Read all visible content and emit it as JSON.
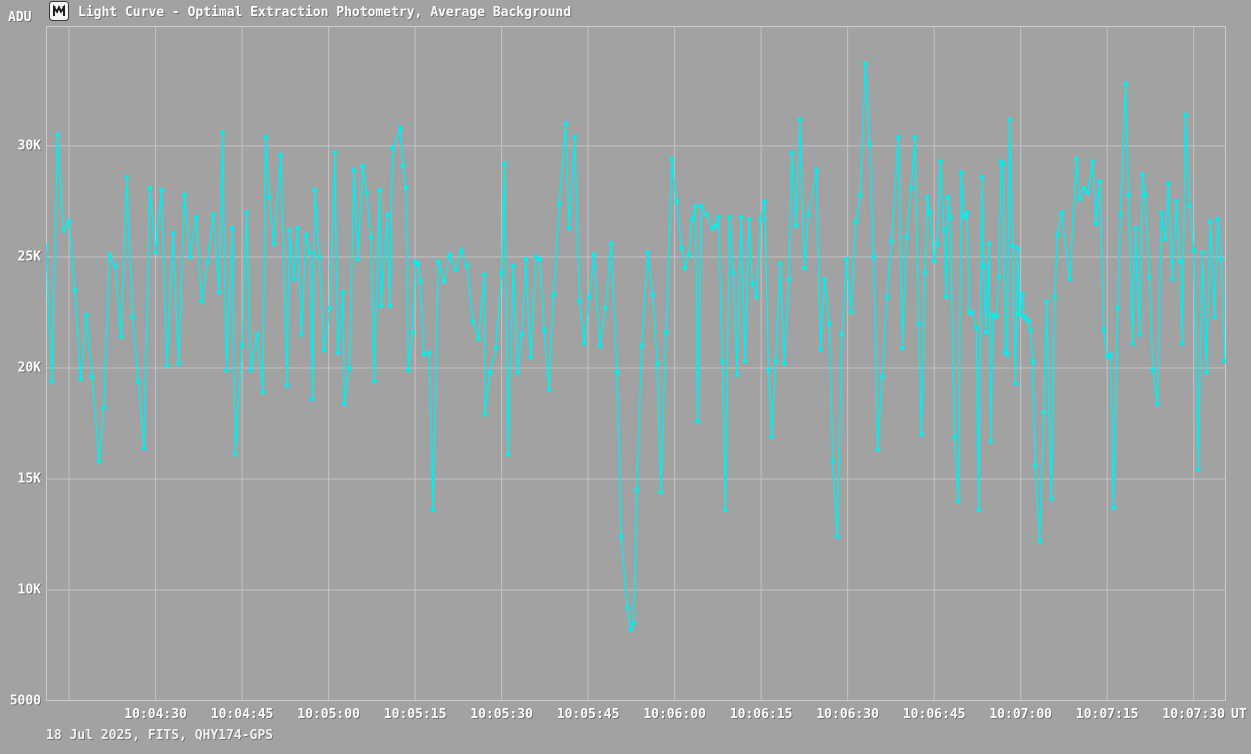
{
  "header": {
    "icon": "app-icon",
    "title": "Light Curve - Optimal Extraction Photometry, Average Background"
  },
  "footer": {
    "text": "18 Jul 2025, FITS, QHY174-GPS"
  },
  "colors": {
    "background": "#a2a2a2",
    "grid": "#c3c3c3",
    "border": "#cbcbcb",
    "series": "#00efef",
    "text": "#fafafa"
  },
  "chart_data": {
    "type": "line",
    "title": "Light Curve - Optimal Extraction Photometry, Average Background",
    "xlabel": "UT",
    "ylabel": "ADU",
    "x_start_time": "10:04:11",
    "xlim_seconds": [
      0,
      204.6
    ],
    "ylim": [
      5000,
      35400
    ],
    "grid": true,
    "marker": "square",
    "y_ticks": [
      {
        "value": 30000,
        "label": "30K",
        "gridline": true
      },
      {
        "value": 25000,
        "label": "25K",
        "gridline": true
      },
      {
        "value": 20000,
        "label": "20K",
        "gridline": true
      },
      {
        "value": 15000,
        "label": "15K",
        "gridline": true
      },
      {
        "value": 10000,
        "label": "10K",
        "gridline": true
      },
      {
        "value": 5000,
        "label": "5000",
        "gridline": false
      }
    ],
    "x_ticks": [
      {
        "t": 4,
        "label": ""
      },
      {
        "t": 19,
        "label": "10:04:30"
      },
      {
        "t": 34,
        "label": "10:04:45"
      },
      {
        "t": 49,
        "label": "10:05:00"
      },
      {
        "t": 64,
        "label": "10:05:15"
      },
      {
        "t": 79,
        "label": "10:05:30"
      },
      {
        "t": 94,
        "label": "10:05:45"
      },
      {
        "t": 109,
        "label": "10:06:00"
      },
      {
        "t": 124,
        "label": "10:06:15"
      },
      {
        "t": 139,
        "label": "10:06:30"
      },
      {
        "t": 154,
        "label": "10:06:45"
      },
      {
        "t": 169,
        "label": "10:07:00"
      },
      {
        "t": 184,
        "label": "10:07:15"
      },
      {
        "t": 199,
        "label": "10:07:30"
      }
    ],
    "series": [
      {
        "name": "flux_adu",
        "color": "#00efef",
        "points": [
          [
            0,
            25500
          ],
          [
            1,
            19400
          ],
          [
            2,
            30500
          ],
          [
            3,
            26200
          ],
          [
            4,
            26600
          ],
          [
            5,
            23500
          ],
          [
            6,
            19500
          ],
          [
            7,
            22400
          ],
          [
            8,
            19600
          ],
          [
            9.2,
            15800
          ],
          [
            10,
            18200
          ],
          [
            11,
            25100
          ],
          [
            12,
            24600
          ],
          [
            13,
            21400
          ],
          [
            14,
            28600
          ],
          [
            15,
            22300
          ],
          [
            16,
            19400
          ],
          [
            17,
            16400
          ],
          [
            18,
            28100
          ],
          [
            19,
            25200
          ],
          [
            20,
            28000
          ],
          [
            21,
            20100
          ],
          [
            22,
            26100
          ],
          [
            23,
            20200
          ],
          [
            24,
            27800
          ],
          [
            25,
            25000
          ],
          [
            26,
            26800
          ],
          [
            27,
            23000
          ],
          [
            28,
            24800
          ],
          [
            29,
            26900
          ],
          [
            30,
            23400
          ],
          [
            30.6,
            30600
          ],
          [
            31.3,
            19900
          ],
          [
            32.3,
            26300
          ],
          [
            32.8,
            16100
          ],
          [
            34,
            21000
          ],
          [
            34.8,
            27000
          ],
          [
            35.5,
            19900
          ],
          [
            36.6,
            21500
          ],
          [
            37.6,
            18900
          ],
          [
            38.1,
            30400
          ],
          [
            38.7,
            27700
          ],
          [
            39.5,
            25600
          ],
          [
            40.7,
            29600
          ],
          [
            41.8,
            19200
          ],
          [
            42.2,
            26200
          ],
          [
            43,
            24000
          ],
          [
            43.6,
            26300
          ],
          [
            44.3,
            21500
          ],
          [
            45.1,
            26000
          ],
          [
            45.8,
            25200
          ],
          [
            46.2,
            18600
          ],
          [
            46.6,
            28000
          ],
          [
            47.4,
            25000
          ],
          [
            48.2,
            20800
          ],
          [
            49.2,
            22700
          ],
          [
            50.1,
            29700
          ],
          [
            50.6,
            20700
          ],
          [
            51.5,
            23400
          ],
          [
            51.7,
            18400
          ],
          [
            52.6,
            20000
          ],
          [
            53.4,
            28900
          ],
          [
            54.1,
            24900
          ],
          [
            54.9,
            29100
          ],
          [
            55.6,
            27900
          ],
          [
            56.3,
            25900
          ],
          [
            56.9,
            19400
          ],
          [
            57.8,
            28000
          ],
          [
            58.1,
            22800
          ],
          [
            59.2,
            26900
          ],
          [
            59.6,
            22800
          ],
          [
            60.1,
            29900
          ],
          [
            61.4,
            30800
          ],
          [
            61.9,
            29100
          ],
          [
            62.4,
            28100
          ],
          [
            62.8,
            19900
          ],
          [
            63.6,
            21600
          ],
          [
            64,
            24800
          ],
          [
            64.5,
            24700
          ],
          [
            64.9,
            23900
          ],
          [
            65.5,
            20600
          ],
          [
            66.4,
            20700
          ],
          [
            67.1,
            13600
          ],
          [
            68,
            24800
          ],
          [
            69,
            23900
          ],
          [
            70,
            25100
          ],
          [
            71,
            24400
          ],
          [
            72,
            25300
          ],
          [
            73,
            24600
          ],
          [
            74,
            22100
          ],
          [
            75,
            21300
          ],
          [
            76,
            24200
          ],
          [
            76.1,
            17900
          ],
          [
            77,
            19800
          ],
          [
            78,
            20900
          ],
          [
            79,
            24300
          ],
          [
            79.5,
            29200
          ],
          [
            80.1,
            16100
          ],
          [
            81,
            24600
          ],
          [
            81.8,
            19800
          ],
          [
            82.5,
            21500
          ],
          [
            83.2,
            24900
          ],
          [
            84,
            20500
          ],
          [
            85,
            25000
          ],
          [
            85.6,
            24900
          ],
          [
            86.4,
            21700
          ],
          [
            87.2,
            19000
          ],
          [
            88,
            23300
          ],
          [
            89,
            27400
          ],
          [
            90.1,
            31000
          ],
          [
            90.7,
            26300
          ],
          [
            91.7,
            30400
          ],
          [
            92.5,
            23000
          ],
          [
            93.3,
            21100
          ],
          [
            94.2,
            23200
          ],
          [
            95,
            25100
          ],
          [
            96,
            21000
          ],
          [
            97,
            22700
          ],
          [
            98,
            25600
          ],
          [
            99,
            19800
          ],
          [
            99.7,
            12400
          ],
          [
            100.8,
            9200
          ],
          [
            101.4,
            8200
          ],
          [
            101.9,
            8500
          ],
          [
            102.4,
            14500
          ],
          [
            103.3,
            21000
          ],
          [
            104.3,
            25200
          ],
          [
            105.2,
            23300
          ],
          [
            106,
            20200
          ],
          [
            106.6,
            14400
          ],
          [
            107.5,
            21600
          ],
          [
            108.5,
            29400
          ],
          [
            109.3,
            27500
          ],
          [
            110.2,
            25400
          ],
          [
            110.8,
            24500
          ],
          [
            111.5,
            25100
          ],
          [
            112,
            26700
          ],
          [
            112.6,
            27300
          ],
          [
            113,
            17600
          ],
          [
            113.6,
            27300
          ],
          [
            114.5,
            26900
          ],
          [
            115.5,
            26300
          ],
          [
            116.1,
            26400
          ],
          [
            116.6,
            26800
          ],
          [
            117.3,
            20300
          ],
          [
            117.8,
            13600
          ],
          [
            118.5,
            26800
          ],
          [
            119.2,
            24300
          ],
          [
            119.8,
            19700
          ],
          [
            120.5,
            26800
          ],
          [
            121.2,
            20300
          ],
          [
            121.9,
            26700
          ],
          [
            122.5,
            23800
          ],
          [
            123.2,
            23200
          ],
          [
            123.9,
            26700
          ],
          [
            124.6,
            27500
          ],
          [
            125.3,
            19900
          ],
          [
            125.8,
            16900
          ],
          [
            126.5,
            20300
          ],
          [
            127.3,
            24700
          ],
          [
            128,
            20200
          ],
          [
            128.8,
            24000
          ],
          [
            129.3,
            29700
          ],
          [
            130,
            26400
          ],
          [
            130.7,
            31200
          ],
          [
            131.5,
            24500
          ],
          [
            132.2,
            26900
          ],
          [
            133.6,
            28900
          ],
          [
            134.3,
            20800
          ],
          [
            135,
            24000
          ],
          [
            135.8,
            22000
          ],
          [
            136.4,
            15800
          ],
          [
            137.2,
            12400
          ],
          [
            138,
            21500
          ],
          [
            138.8,
            24900
          ],
          [
            139.6,
            22500
          ],
          [
            140.4,
            26600
          ],
          [
            141.2,
            27800
          ],
          [
            142.1,
            33700
          ],
          [
            142.8,
            30100
          ],
          [
            143.5,
            25000
          ],
          [
            144.2,
            16300
          ],
          [
            145,
            19600
          ],
          [
            145.8,
            23200
          ],
          [
            146.6,
            25700
          ],
          [
            147.8,
            30400
          ],
          [
            148.5,
            20900
          ],
          [
            149.2,
            25900
          ],
          [
            150,
            28100
          ],
          [
            150.7,
            30400
          ],
          [
            151.3,
            22000
          ],
          [
            151.8,
            17000
          ],
          [
            152.4,
            24300
          ],
          [
            152.8,
            27700
          ],
          [
            153.2,
            27000
          ],
          [
            154,
            24800
          ],
          [
            154.5,
            25600
          ],
          [
            155.1,
            29300
          ],
          [
            155.7,
            26200
          ],
          [
            156.1,
            23200
          ],
          [
            156.4,
            27700
          ],
          [
            156.8,
            26800
          ],
          [
            157.5,
            16900
          ],
          [
            158.2,
            14000
          ],
          [
            158.7,
            28800
          ],
          [
            159.2,
            26800
          ],
          [
            159.7,
            27000
          ],
          [
            160.1,
            22500
          ],
          [
            160.6,
            22500
          ],
          [
            161.3,
            21800
          ],
          [
            161.7,
            13600
          ],
          [
            162.3,
            28600
          ],
          [
            162.6,
            24600
          ],
          [
            163,
            21600
          ],
          [
            163.5,
            25600
          ],
          [
            163.8,
            16700
          ],
          [
            164.2,
            22400
          ],
          [
            164.8,
            22300
          ],
          [
            165.2,
            24100
          ],
          [
            165.6,
            29300
          ],
          [
            166,
            29200
          ],
          [
            166.3,
            20700
          ],
          [
            166.7,
            20600
          ],
          [
            167.1,
            31200
          ],
          [
            167.6,
            25500
          ],
          [
            168.1,
            19300
          ],
          [
            168.5,
            25400
          ],
          [
            168.8,
            22400
          ],
          [
            169.3,
            23300
          ],
          [
            169.6,
            22300
          ],
          [
            170,
            22200
          ],
          [
            170.4,
            22100
          ],
          [
            170.7,
            21700
          ],
          [
            171.1,
            20300
          ],
          [
            171.5,
            15600
          ],
          [
            172.3,
            12200
          ],
          [
            173,
            18000
          ],
          [
            173.5,
            23000
          ],
          [
            174.3,
            14100
          ],
          [
            174.9,
            23200
          ],
          [
            175.4,
            26000
          ],
          [
            176.1,
            27000
          ],
          [
            177.5,
            24000
          ],
          [
            178.7,
            29400
          ],
          [
            179.2,
            27600
          ],
          [
            180,
            28100
          ],
          [
            180.6,
            27900
          ],
          [
            181.5,
            29300
          ],
          [
            182,
            26500
          ],
          [
            182.7,
            28400
          ],
          [
            183.4,
            21700
          ],
          [
            184,
            20500
          ],
          [
            184.6,
            20600
          ],
          [
            185.1,
            13700
          ],
          [
            185.8,
            22700
          ],
          [
            186.3,
            26900
          ],
          [
            187.2,
            32800
          ],
          [
            187.7,
            27800
          ],
          [
            188.4,
            21100
          ],
          [
            188.9,
            26300
          ],
          [
            189.6,
            21500
          ],
          [
            190.1,
            28700
          ],
          [
            190.6,
            27800
          ],
          [
            191.3,
            24100
          ],
          [
            191.9,
            19900
          ],
          [
            192.7,
            18400
          ],
          [
            193.4,
            27000
          ],
          [
            194.1,
            25800
          ],
          [
            194.6,
            28300
          ],
          [
            195.3,
            24000
          ],
          [
            196,
            27500
          ],
          [
            196.6,
            24800
          ],
          [
            197,
            21100
          ],
          [
            197.6,
            31400
          ],
          [
            198.3,
            27300
          ],
          [
            199,
            25300
          ],
          [
            199.8,
            15400
          ],
          [
            200.5,
            25200
          ],
          [
            201.2,
            19800
          ],
          [
            201.9,
            26600
          ],
          [
            202.6,
            22300
          ],
          [
            203.2,
            26700
          ],
          [
            203.8,
            24900
          ],
          [
            204.4,
            20300
          ]
        ]
      }
    ]
  }
}
